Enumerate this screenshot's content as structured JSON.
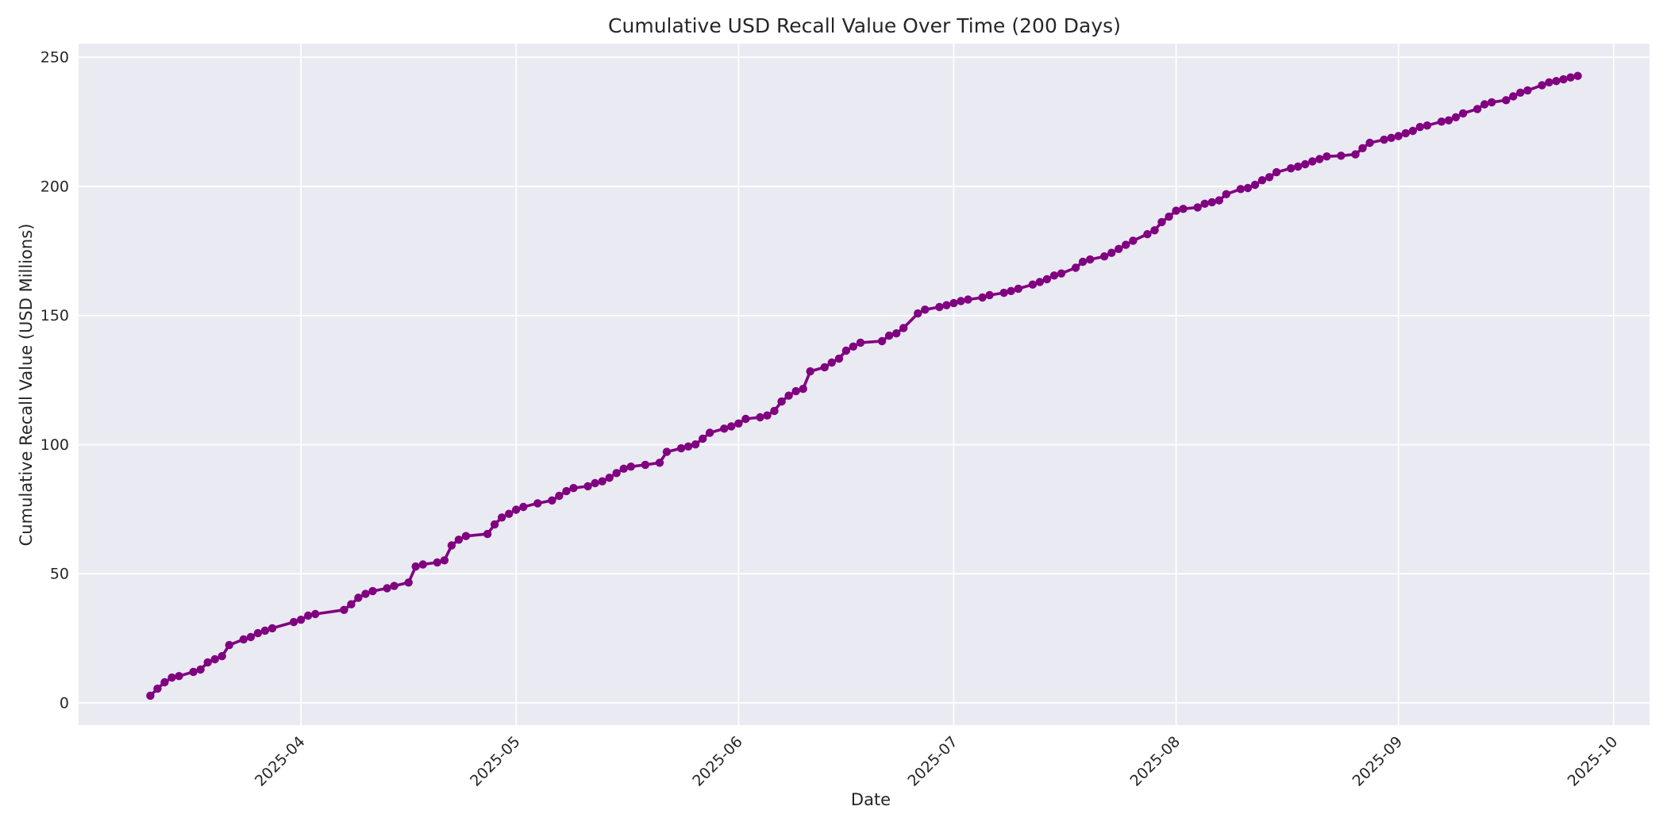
{
  "figure": {
    "title": "Cumulative USD Recall Value Over Time (200 Days)",
    "xlabel": "Date",
    "ylabel": "Cumulative Recall Value (USD Millions)"
  },
  "chart_data": {
    "type": "line",
    "title": "Cumulative USD Recall Value Over Time (200 Days)",
    "xlabel": "Date",
    "ylabel": "Cumulative Recall Value (USD Millions)",
    "series_name": "cumulative-usd-recall-value",
    "line_color": "#800080",
    "marker": "circle",
    "plot_bg_color": "#eaeaf2",
    "grid_color": "#ffffff",
    "text_color": "#262626",
    "grid": true,
    "legend": "none",
    "x_tick_labels": [
      "2025-04",
      "2025-05",
      "2025-06",
      "2025-07",
      "2025-08",
      "2025-09",
      "2025-10"
    ],
    "x_tick_dates": [
      "2025-04-01",
      "2025-05-01",
      "2025-06-01",
      "2025-07-01",
      "2025-08-01",
      "2025-09-01",
      "2025-10-01"
    ],
    "y_ticks": [
      0,
      50,
      100,
      150,
      200,
      250
    ],
    "y_display_range": [
      0,
      250
    ],
    "x_display_range": [
      "2025-03-01",
      "2025-10-06"
    ],
    "span_days": 200,
    "start_value": 2.8,
    "end_value": 242.8,
    "points": [
      [
        "2025-03-11",
        2.8
      ],
      [
        "2025-03-12",
        5.5
      ],
      [
        "2025-03-13",
        8.0
      ],
      [
        "2025-03-14",
        9.8
      ],
      [
        "2025-03-15",
        10.4
      ],
      [
        "2025-03-17",
        12.0
      ],
      [
        "2025-03-18",
        12.9
      ],
      [
        "2025-03-19",
        15.7
      ],
      [
        "2025-03-20",
        16.9
      ],
      [
        "2025-03-21",
        18.1
      ],
      [
        "2025-03-22",
        22.4
      ],
      [
        "2025-03-24",
        24.6
      ],
      [
        "2025-03-25",
        25.5
      ],
      [
        "2025-03-26",
        27.0
      ],
      [
        "2025-03-27",
        28.0
      ],
      [
        "2025-03-28",
        28.9
      ],
      [
        "2025-03-31",
        31.3
      ],
      [
        "2025-04-01",
        32.2
      ],
      [
        "2025-04-02",
        33.8
      ],
      [
        "2025-04-03",
        34.4
      ],
      [
        "2025-04-07",
        36.0
      ],
      [
        "2025-04-08",
        38.2
      ],
      [
        "2025-04-09",
        40.7
      ],
      [
        "2025-04-10",
        42.2
      ],
      [
        "2025-04-11",
        43.3
      ],
      [
        "2025-04-13",
        44.4
      ],
      [
        "2025-04-14",
        45.3
      ],
      [
        "2025-04-16",
        46.6
      ],
      [
        "2025-04-17",
        52.8
      ],
      [
        "2025-04-18",
        53.6
      ],
      [
        "2025-04-20",
        54.4
      ],
      [
        "2025-04-21",
        55.2
      ],
      [
        "2025-04-22",
        61.0
      ],
      [
        "2025-04-23",
        63.2
      ],
      [
        "2025-04-24",
        64.6
      ],
      [
        "2025-04-27",
        65.4
      ],
      [
        "2025-04-28",
        69.1
      ],
      [
        "2025-04-29",
        71.8
      ],
      [
        "2025-04-30",
        73.2
      ],
      [
        "2025-05-01",
        74.8
      ],
      [
        "2025-05-02",
        75.9
      ],
      [
        "2025-05-04",
        77.3
      ],
      [
        "2025-05-06",
        78.4
      ],
      [
        "2025-05-07",
        80.2
      ],
      [
        "2025-05-08",
        82.0
      ],
      [
        "2025-05-09",
        83.2
      ],
      [
        "2025-05-11",
        83.9
      ],
      [
        "2025-05-12",
        85.1
      ],
      [
        "2025-05-13",
        85.8
      ],
      [
        "2025-05-14",
        87.2
      ],
      [
        "2025-05-15",
        89.0
      ],
      [
        "2025-05-16",
        90.7
      ],
      [
        "2025-05-17",
        91.5
      ],
      [
        "2025-05-19",
        92.2
      ],
      [
        "2025-05-21",
        93.0
      ],
      [
        "2025-05-22",
        97.2
      ],
      [
        "2025-05-24",
        98.6
      ],
      [
        "2025-05-25",
        99.3
      ],
      [
        "2025-05-26",
        100.1
      ],
      [
        "2025-05-27",
        102.3
      ],
      [
        "2025-05-28",
        104.6
      ],
      [
        "2025-05-30",
        106.2
      ],
      [
        "2025-05-31",
        107.1
      ],
      [
        "2025-06-01",
        108.2
      ],
      [
        "2025-06-02",
        110.0
      ],
      [
        "2025-06-04",
        110.6
      ],
      [
        "2025-06-05",
        111.3
      ],
      [
        "2025-06-06",
        113.1
      ],
      [
        "2025-06-07",
        116.7
      ],
      [
        "2025-06-08",
        119.0
      ],
      [
        "2025-06-09",
        120.7
      ],
      [
        "2025-06-10",
        121.6
      ],
      [
        "2025-06-11",
        128.4
      ],
      [
        "2025-06-13",
        130.0
      ],
      [
        "2025-06-14",
        131.8
      ],
      [
        "2025-06-15",
        133.3
      ],
      [
        "2025-06-16",
        136.4
      ],
      [
        "2025-06-17",
        138.0
      ],
      [
        "2025-06-18",
        139.5
      ],
      [
        "2025-06-21",
        140.1
      ],
      [
        "2025-06-22",
        142.2
      ],
      [
        "2025-06-23",
        143.1
      ],
      [
        "2025-06-24",
        145.2
      ],
      [
        "2025-06-26",
        150.8
      ],
      [
        "2025-06-27",
        152.3
      ],
      [
        "2025-06-29",
        153.3
      ],
      [
        "2025-06-30",
        154.0
      ],
      [
        "2025-07-01",
        154.8
      ],
      [
        "2025-07-02",
        155.6
      ],
      [
        "2025-07-03",
        156.2
      ],
      [
        "2025-07-05",
        157.0
      ],
      [
        "2025-07-06",
        157.9
      ],
      [
        "2025-07-08",
        158.8
      ],
      [
        "2025-07-09",
        159.5
      ],
      [
        "2025-07-10",
        160.4
      ],
      [
        "2025-07-12",
        162.0
      ],
      [
        "2025-07-13",
        163.0
      ],
      [
        "2025-07-14",
        164.1
      ],
      [
        "2025-07-15",
        165.5
      ],
      [
        "2025-07-16",
        166.3
      ],
      [
        "2025-07-18",
        168.5
      ],
      [
        "2025-07-19",
        170.8
      ],
      [
        "2025-07-20",
        171.7
      ],
      [
        "2025-07-22",
        172.9
      ],
      [
        "2025-07-23",
        174.3
      ],
      [
        "2025-07-24",
        175.8
      ],
      [
        "2025-07-25",
        177.4
      ],
      [
        "2025-07-26",
        179.0
      ],
      [
        "2025-07-28",
        181.5
      ],
      [
        "2025-07-29",
        183.0
      ],
      [
        "2025-07-30",
        186.2
      ],
      [
        "2025-07-31",
        188.3
      ],
      [
        "2025-08-01",
        190.6
      ],
      [
        "2025-08-02",
        191.3
      ],
      [
        "2025-08-04",
        191.9
      ],
      [
        "2025-08-05",
        193.3
      ],
      [
        "2025-08-06",
        193.9
      ],
      [
        "2025-08-07",
        194.6
      ],
      [
        "2025-08-08",
        197.0
      ],
      [
        "2025-08-10",
        199.0
      ],
      [
        "2025-08-11",
        199.4
      ],
      [
        "2025-08-12",
        200.6
      ],
      [
        "2025-08-13",
        202.4
      ],
      [
        "2025-08-14",
        203.6
      ],
      [
        "2025-08-15",
        205.5
      ],
      [
        "2025-08-17",
        207.0
      ],
      [
        "2025-08-18",
        207.7
      ],
      [
        "2025-08-19",
        208.6
      ],
      [
        "2025-08-20",
        209.7
      ],
      [
        "2025-08-21",
        210.6
      ],
      [
        "2025-08-22",
        211.6
      ],
      [
        "2025-08-24",
        211.9
      ],
      [
        "2025-08-26",
        212.4
      ],
      [
        "2025-08-27",
        214.8
      ],
      [
        "2025-08-28",
        216.9
      ],
      [
        "2025-08-30",
        218.1
      ],
      [
        "2025-08-31",
        218.8
      ],
      [
        "2025-09-01",
        219.5
      ],
      [
        "2025-09-02",
        220.6
      ],
      [
        "2025-09-03",
        221.5
      ],
      [
        "2025-09-04",
        223.0
      ],
      [
        "2025-09-05",
        223.6
      ],
      [
        "2025-09-07",
        225.1
      ],
      [
        "2025-09-08",
        225.6
      ],
      [
        "2025-09-09",
        226.8
      ],
      [
        "2025-09-10",
        228.3
      ],
      [
        "2025-09-12",
        230.0
      ],
      [
        "2025-09-13",
        231.8
      ],
      [
        "2025-09-14",
        232.6
      ],
      [
        "2025-09-16",
        233.4
      ],
      [
        "2025-09-17",
        234.9
      ],
      [
        "2025-09-18",
        236.3
      ],
      [
        "2025-09-19",
        237.2
      ],
      [
        "2025-09-21",
        239.2
      ],
      [
        "2025-09-22",
        240.3
      ],
      [
        "2025-09-23",
        240.8
      ],
      [
        "2025-09-24",
        241.5
      ],
      [
        "2025-09-25",
        242.2
      ],
      [
        "2025-09-26",
        242.8
      ]
    ]
  }
}
